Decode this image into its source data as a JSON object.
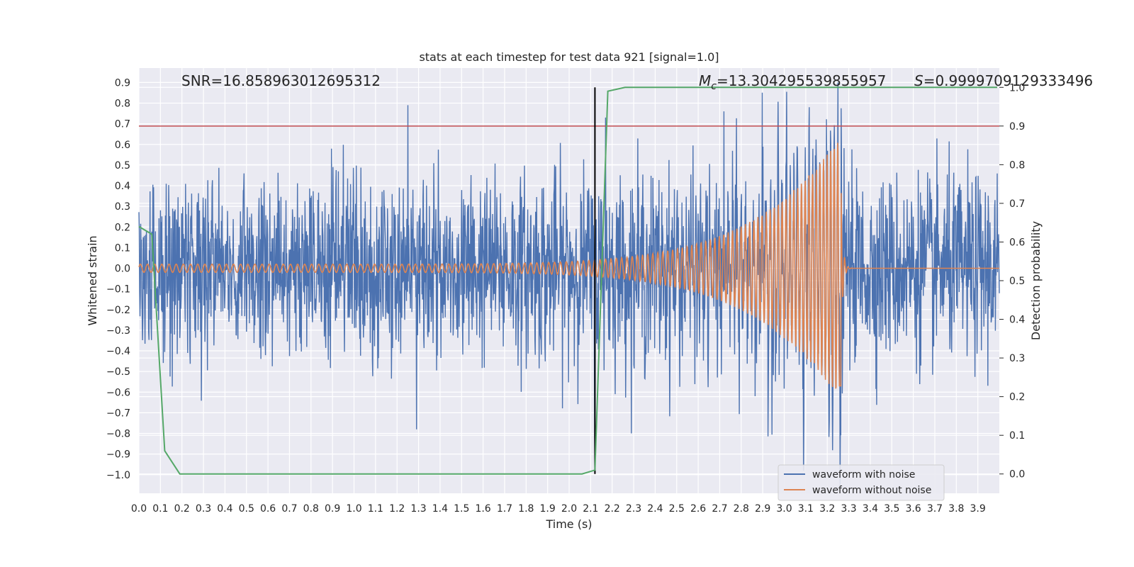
{
  "chart_data": {
    "type": "line",
    "title": "stats at each timestep for test data 921 [signal=1.0]",
    "xlabel": "Time (s)",
    "ylabel": "Whitened strain",
    "ylabel_right": "Detection probability",
    "xlim": [
      0.0,
      4.0
    ],
    "ylim": [
      -1.09,
      0.97
    ],
    "ylim_right": [
      -0.05,
      1.05
    ],
    "x_ticks": [
      "0.0",
      "0.1",
      "0.2",
      "0.3",
      "0.4",
      "0.5",
      "0.6",
      "0.7",
      "0.8",
      "0.9",
      "1.0",
      "1.1",
      "1.2",
      "1.3",
      "1.4",
      "1.5",
      "1.6",
      "1.7",
      "1.8",
      "1.9",
      "2.0",
      "2.1",
      "2.2",
      "2.3",
      "2.4",
      "2.5",
      "2.6",
      "2.7",
      "2.8",
      "2.9",
      "3.0",
      "3.1",
      "3.2",
      "3.3",
      "3.4",
      "3.5",
      "3.6",
      "3.7",
      "3.8",
      "3.9"
    ],
    "y_ticks": [
      "0.9",
      "0.8",
      "0.7",
      "0.6",
      "0.5",
      "0.4",
      "0.3",
      "0.2",
      "0.1",
      "0.0",
      "−0.1",
      "−0.2",
      "−0.3",
      "−0.4",
      "−0.5",
      "−0.6",
      "−0.7",
      "−0.8",
      "−0.9",
      "−1.0"
    ],
    "y_right_ticks": [
      "1.0",
      "0.9",
      "0.8",
      "0.7",
      "0.6",
      "0.5",
      "0.4",
      "0.3",
      "0.2",
      "0.1",
      "0.0"
    ],
    "grid": true,
    "legend_position": "lower-right",
    "annotations": {
      "snr": "SNR=16.858963012695312",
      "mc_symbol": "M",
      "mc_sub": "c",
      "mc_value": "=13.304295539855957",
      "s_symbol": "S",
      "s_value": "=0.9999709129333496"
    },
    "threshold_line": {
      "axis": "right",
      "value": 0.9,
      "color": "#c44e52"
    },
    "detection_time_marker": {
      "x": 2.12,
      "color": "#000000"
    },
    "series": [
      {
        "name": "waveform with noise",
        "color": "#4c72b0",
        "description_amplitude_std": 0.22,
        "spikes": [
          {
            "x": 1.25,
            "y": 0.79
          },
          {
            "x": 1.29,
            "y": -0.78
          },
          {
            "x": 2.12,
            "y": -0.95
          },
          {
            "x": 2.17,
            "y": 0.73
          },
          {
            "x": 3.09,
            "y": -0.98
          },
          {
            "x": 3.25,
            "y": 0.9
          },
          {
            "x": 3.26,
            "y": -1.05
          }
        ]
      },
      {
        "name": "waveform without noise",
        "color": "#dd8452",
        "chirp": {
          "amplitude_start": 0.02,
          "amplitude_peak": 0.64,
          "peak_x": 3.26,
          "min_peak": -0.57,
          "freq_start_hz": 30,
          "freq_end_hz": 62
        }
      },
      {
        "name": "detection probability",
        "axis": "right",
        "color": "#55a868",
        "x": [
          0.0,
          0.06,
          0.12,
          0.19,
          2.06,
          2.12,
          2.18,
          2.26,
          3.99
        ],
        "y": [
          0.64,
          0.62,
          0.06,
          0.0,
          0.0,
          0.01,
          0.99,
          1.0,
          1.0
        ]
      }
    ]
  }
}
